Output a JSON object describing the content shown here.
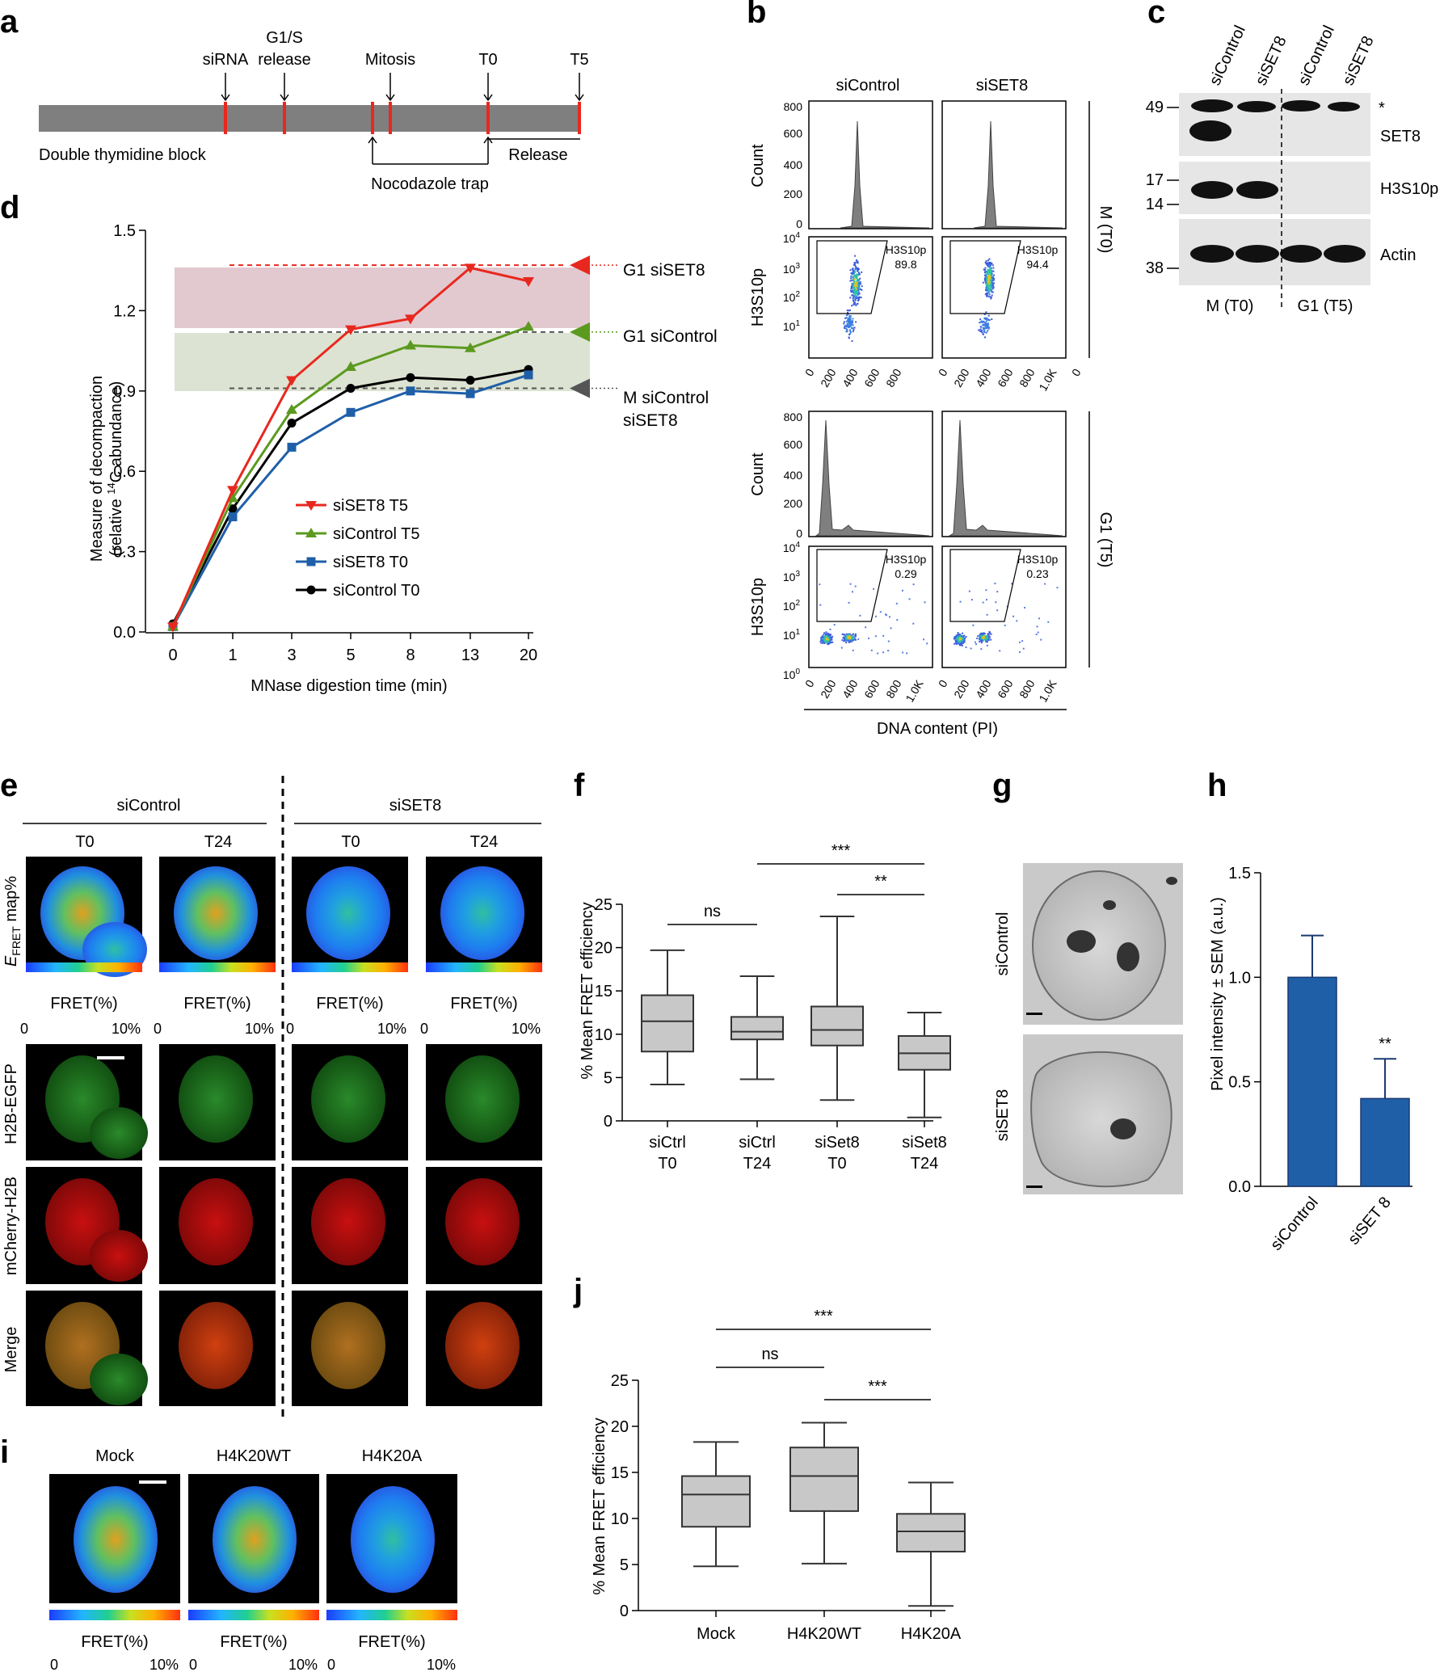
{
  "panel_labels": {
    "a": "a",
    "b": "b",
    "c": "c",
    "d": "d",
    "e": "e",
    "f": "f",
    "g": "g",
    "h": "h",
    "i": "i",
    "j": "j"
  },
  "panel_a": {
    "events": [
      {
        "label": "siRNA",
        "label2": ""
      },
      {
        "label": "G1/S",
        "label2": "release"
      },
      {
        "label": "Mitosis",
        "label2": ""
      },
      {
        "label": "T0",
        "label2": ""
      },
      {
        "label": "T5",
        "label2": ""
      }
    ],
    "double_thymidine": "Double thymidine block",
    "nocodazole": "Nocodazole trap",
    "release": "Release",
    "bar_color": "#7f7f7f",
    "marker_color": "#e8281e"
  },
  "panel_b": {
    "col_labels": [
      "siControl",
      "siSET8"
    ],
    "row_M": "M (T0)",
    "row_G1": "G1 (T5)",
    "count_label": "Count",
    "h3_label": "H3S10p",
    "xlabel": "DNA content (PI)",
    "count_ticks": [
      "800",
      "600",
      "400",
      "200",
      "0"
    ],
    "pi_ticks": [
      "0",
      "200",
      "400",
      "600",
      "800",
      "1.0K"
    ],
    "gate_values": [
      {
        "name": "H3S10p",
        "value": "89.8"
      },
      {
        "name": "H3S10p",
        "value": "94.4"
      },
      {
        "name": "H3S10p",
        "value": "0.29"
      },
      {
        "name": "H3S10p",
        "value": "0.23"
      }
    ],
    "m_first_axis_ticks": [
      "0",
      "200",
      "400",
      "600",
      "800"
    ],
    "m_extra_tick": "0"
  },
  "panel_c": {
    "lanes": [
      "siControl",
      "siSET8",
      "siControl",
      "siSET8"
    ],
    "blots": [
      "SET8",
      "H3S10p",
      "Actin"
    ],
    "markers": [
      "49",
      "17",
      "14",
      "38"
    ],
    "asterisk": "*",
    "groups": [
      "M (T0)",
      "G1 (T5)"
    ]
  },
  "panel_d": {
    "chart_data": {
      "type": "line",
      "x": [
        "0",
        "1",
        "3",
        "5",
        "8",
        "13",
        "20"
      ],
      "ylabel_line1": "Measure of decompaction",
      "ylabel_line2": "(relative ",
      "ylabel_sup": "14",
      "ylabel_line2_end": "C abundance)",
      "xlabel": "MNase digestion time (min)",
      "ylim": [
        0,
        1.5
      ],
      "yticks": [
        "0.0",
        "0.3",
        "0.6",
        "0.9",
        "1.2",
        "1.5"
      ],
      "series": [
        {
          "name": "siSET8 T5",
          "color": "#e8281e",
          "marker": "tri-down",
          "values": [
            0.02,
            0.53,
            0.94,
            1.13,
            1.17,
            1.36,
            1.31
          ]
        },
        {
          "name": "siControl T5",
          "color": "#5b9a1f",
          "marker": "tri-up",
          "values": [
            0.02,
            0.5,
            0.83,
            0.99,
            1.07,
            1.06,
            1.14
          ]
        },
        {
          "name": "siSET8 T0",
          "color": "#1f5fa8",
          "marker": "square",
          "values": [
            0.02,
            0.43,
            0.69,
            0.82,
            0.9,
            0.89,
            0.96
          ]
        },
        {
          "name": "siControl T0",
          "color": "#000000",
          "marker": "circle",
          "values": [
            0.03,
            0.46,
            0.78,
            0.91,
            0.95,
            0.94,
            0.98
          ]
        }
      ],
      "levels": [
        {
          "label": "G1 siSET8",
          "value": 1.37,
          "color": "#e8281e"
        },
        {
          "label": "G1 siControl",
          "value": 1.12,
          "color": "#5b9a1f"
        },
        {
          "label": "M siControl",
          "label2": "siSET8",
          "value": 0.91,
          "color": "#555555"
        }
      ]
    }
  },
  "panel_e": {
    "groups": [
      "siControl",
      "siSET8"
    ],
    "timepoints": [
      "T0",
      "T24",
      "T0",
      "T24"
    ],
    "row_labels": {
      "efret_E": "E",
      "efret_sub": "FRET",
      "efret_rest": " map%",
      "h2b": "H2B-EGFP",
      "mcherry": "mCherry-H2B",
      "merge": "Merge"
    },
    "fret_label": "FRET(%)",
    "scale_min": "0",
    "scale_max": "10%"
  },
  "panel_f": {
    "chart_data": {
      "type": "box",
      "ylabel": "% Mean FRET efficiency",
      "ylim": [
        0,
        25
      ],
      "yticks": [
        "0",
        "5",
        "10",
        "15",
        "20",
        "25"
      ],
      "categories": [
        {
          "line1": "siCtrl",
          "line2": "T0"
        },
        {
          "line1": "siCtrl",
          "line2": "T24"
        },
        {
          "line1": "siSet8",
          "line2": "T0"
        },
        {
          "line1": "siSet8",
          "line2": "T24"
        }
      ],
      "boxes": [
        {
          "min": 4.2,
          "q1": 8.0,
          "median": 11.5,
          "q3": 14.5,
          "max": 19.7
        },
        {
          "min": 4.8,
          "q1": 9.4,
          "median": 10.3,
          "q3": 12.0,
          "max": 16.7
        },
        {
          "min": 2.4,
          "q1": 8.7,
          "median": 10.5,
          "q3": 13.2,
          "max": 23.6
        },
        {
          "min": 0.4,
          "q1": 5.9,
          "median": 7.8,
          "q3": 9.8,
          "max": 12.5
        }
      ],
      "significance": [
        {
          "label": "***",
          "from": 1,
          "to": 3
        },
        {
          "label": "**",
          "from": 2,
          "to": 3
        },
        {
          "label": "ns",
          "from": 0,
          "to": 1
        }
      ],
      "box_color": "#c8c8c8"
    }
  },
  "panel_g": {
    "labels": [
      "siControl",
      "siSET8"
    ]
  },
  "panel_h": {
    "chart_data": {
      "type": "bar",
      "ylabel": "Pixel intensity ± SEM (a.u.)",
      "ylim": [
        0,
        1.5
      ],
      "yticks": [
        "0.0",
        "0.5",
        "1.0",
        "1.5"
      ],
      "categories": [
        "siControl",
        "siSET 8"
      ],
      "values": [
        1.0,
        0.42
      ],
      "errors": [
        0.2,
        0.19
      ],
      "annotation": "**",
      "bar_color": "#1f5fa8"
    }
  },
  "panel_i": {
    "labels": [
      "Mock",
      "H4K20WT",
      "H4K20A"
    ],
    "fret_label": "FRET(%)",
    "scale_min": "0",
    "scale_max": "10%"
  },
  "panel_j": {
    "chart_data": {
      "type": "box",
      "ylabel": "% Mean FRET efficiency",
      "ylim": [
        0,
        25
      ],
      "yticks": [
        "0",
        "5",
        "10",
        "15",
        "20",
        "25"
      ],
      "categories": [
        "Mock",
        "H4K20WT",
        "H4K20A"
      ],
      "boxes": [
        {
          "min": 4.8,
          "q1": 9.1,
          "median": 12.6,
          "q3": 14.6,
          "max": 18.3
        },
        {
          "min": 5.1,
          "q1": 10.8,
          "median": 14.6,
          "q3": 17.7,
          "max": 20.4
        },
        {
          "min": 0.5,
          "q1": 6.4,
          "median": 8.6,
          "q3": 10.5,
          "max": 13.9
        }
      ],
      "significance": [
        {
          "label": "***",
          "from": 0,
          "to": 2
        },
        {
          "label": "ns",
          "from": 0,
          "to": 1
        },
        {
          "label": "***",
          "from": 1,
          "to": 2
        }
      ],
      "box_color": "#c8c8c8"
    }
  }
}
